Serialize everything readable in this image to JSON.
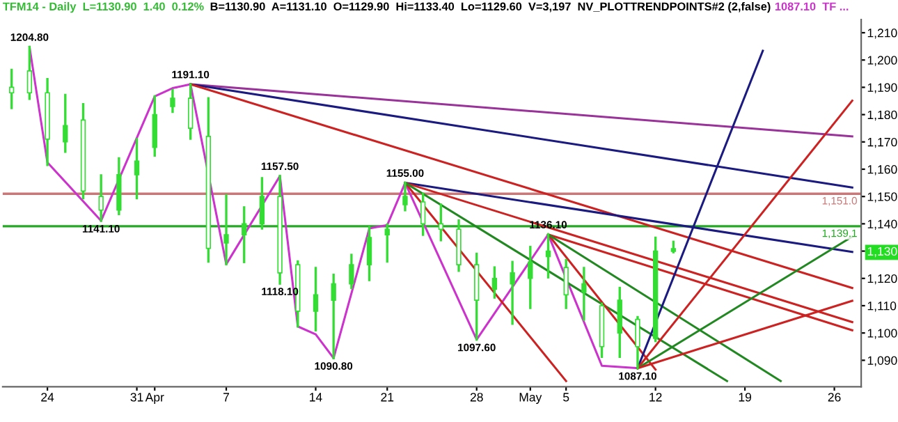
{
  "chart_data": {
    "type": "candlestick",
    "title": "TFM14 - Daily  L=1130.90  1.40  0.12%",
    "subtitle": "B=1130.90  A=1131.10  O=1129.90  Hi=1133.40  Lo=1129.60  V=3,197  NV_PLOTTRENDPOINTS#2 (2,false)",
    "categories": [
      null,
      null,
      "24",
      null,
      null,
      null,
      null,
      "31",
      "Apr",
      null,
      null,
      null,
      "7",
      null,
      null,
      null,
      null,
      "14",
      null,
      null,
      null,
      "21",
      null,
      null,
      null,
      null,
      "28",
      null,
      null,
      "May",
      null,
      "5",
      null,
      null,
      null,
      null,
      "12",
      null,
      null,
      null,
      null,
      "19",
      null,
      null,
      null,
      null,
      "26",
      null
    ],
    "color": "#33dd33",
    "ohlc": [
      [
        1190,
        1196.4,
        1182.4,
        1188
      ],
      [
        1196,
        1204.8,
        1185.8,
        1188
      ],
      [
        1188,
        1193,
        1161.6,
        1171
      ],
      [
        1170,
        1187.2,
        1166.4,
        1176
      ],
      [
        1178,
        1183.8,
        1149.4,
        1152
      ],
      [
        1150,
        1157.7,
        1141.1,
        1145
      ],
      [
        1145,
        1164,
        1143.6,
        1158
      ],
      [
        1158,
        1171,
        1149.4,
        1163
      ],
      [
        1168,
        1186.7,
        1165,
        1180
      ],
      [
        1183,
        1189,
        1181,
        1186
      ],
      [
        1186,
        1191.1,
        1171.2,
        1175
      ],
      [
        1172,
        1186,
        1126.2,
        1131
      ],
      [
        1133,
        1150.4,
        1125.2,
        1136
      ],
      [
        1136,
        1146,
        1126,
        1140
      ],
      [
        1140,
        1156.7,
        1138.3,
        1150
      ],
      [
        1150,
        1157.5,
        1118.1,
        1122
      ],
      [
        1125,
        1126.2,
        1102.4,
        1108
      ],
      [
        1108,
        1123.8,
        1101,
        1114
      ],
      [
        1112,
        1121.3,
        1090.8,
        1118
      ],
      [
        1118,
        1128.6,
        1116.5,
        1125
      ],
      [
        1125,
        1138.8,
        1119.4,
        1135
      ],
      [
        1136,
        1139.7,
        1126.2,
        1138
      ],
      [
        1147,
        1155,
        1145,
        1150
      ],
      [
        1148,
        1151,
        1136,
        1140
      ],
      [
        1140,
        1147,
        1134,
        1138
      ],
      [
        1138,
        1141.2,
        1122.8,
        1125
      ],
      [
        1125,
        1129,
        1097.6,
        1112
      ],
      [
        1116,
        1124,
        1113,
        1120
      ],
      [
        1118,
        1126,
        1103.4,
        1122
      ],
      [
        1120,
        1131.5,
        1109.2,
        1126
      ],
      [
        1128,
        1136.1,
        1120.4,
        1130
      ],
      [
        1124,
        1126.7,
        1109.2,
        1114
      ],
      [
        1115,
        1123.8,
        1104.9,
        1118
      ],
      [
        1110,
        1110.7,
        1091.3,
        1095
      ],
      [
        1100,
        1116.5,
        1091.3,
        1112
      ],
      [
        1105,
        1105.8,
        1087.1,
        1095
      ],
      [
        1098,
        1134.9,
        1097.1,
        1130
      ],
      [
        1129.9,
        1133.4,
        1129.6,
        1130.9
      ],
      null,
      null,
      null,
      null,
      null,
      null,
      null,
      null,
      null,
      null
    ],
    "series": [
      {
        "type": "line",
        "color": "#cc33cc",
        "values": [
          null,
          1204.8,
          1162.5,
          null,
          null,
          1141.1,
          null,
          null,
          1186.7,
          1189.7,
          1191.1,
          null,
          1125.2,
          null,
          null,
          1157.5,
          1102.4,
          1099.5,
          1090.8,
          null,
          1138.3,
          1139.5,
          1155.0,
          null,
          null,
          null,
          1097.6,
          null,
          null,
          null,
          1136.1,
          null,
          null,
          1088.0,
          null,
          1087.1,
          null,
          null,
          null,
          null,
          null,
          null,
          null,
          null,
          null,
          null,
          null,
          null
        ],
        "value_labels": [
          null,
          "1204.80",
          null,
          null,
          null,
          "1141.10",
          null,
          null,
          null,
          null,
          "1191.10",
          null,
          null,
          null,
          null,
          "1157.50",
          null,
          null,
          "1090.80",
          null,
          null,
          null,
          "1155.00",
          null,
          null,
          null,
          "1097.60",
          null,
          null,
          null,
          "1136.10",
          null,
          null,
          null,
          null,
          "1087.10",
          null,
          null,
          null,
          null,
          null,
          null,
          null,
          null,
          null,
          null,
          null,
          null
        ]
      },
      {
        "type": "line",
        "color": "#993399",
        "values": [
          null,
          null,
          null,
          null,
          null,
          null,
          null,
          null,
          null,
          null,
          1191.1,
          null,
          null,
          null,
          null,
          null,
          null,
          null,
          null,
          null,
          null,
          null,
          null,
          null,
          null,
          null,
          null,
          null,
          null,
          null,
          null,
          null,
          null,
          null,
          null,
          null,
          null,
          null,
          null,
          null,
          null,
          null,
          null,
          null,
          null,
          null,
          null,
          1172.0
        ]
      },
      {
        "type": "line",
        "color": "#1a1a80",
        "values": [
          null,
          null,
          null,
          null,
          null,
          null,
          null,
          null,
          null,
          null,
          1191.1,
          null,
          null,
          null,
          null,
          null,
          null,
          null,
          null,
          null,
          null,
          null,
          null,
          null,
          null,
          null,
          null,
          null,
          null,
          null,
          null,
          null,
          null,
          null,
          null,
          null,
          null,
          null,
          null,
          null,
          null,
          null,
          null,
          null,
          null,
          null,
          null,
          1153.3
        ]
      },
      {
        "type": "line",
        "color": "#cc2222",
        "values": [
          null,
          null,
          null,
          null,
          null,
          null,
          null,
          null,
          null,
          null,
          1191.1,
          null,
          null,
          null,
          null,
          null,
          null,
          null,
          null,
          null,
          null,
          null,
          null,
          null,
          null,
          null,
          null,
          null,
          null,
          null,
          null,
          null,
          null,
          null,
          null,
          null,
          null,
          null,
          null,
          null,
          null,
          null,
          null,
          null,
          null,
          null,
          null,
          1116.5
        ]
      },
      {
        "type": "line",
        "color": "#1a1a80",
        "values": [
          null,
          null,
          null,
          null,
          null,
          null,
          null,
          null,
          null,
          null,
          null,
          null,
          null,
          null,
          null,
          null,
          null,
          null,
          null,
          null,
          null,
          null,
          1155.0,
          null,
          null,
          null,
          null,
          null,
          null,
          null,
          null,
          null,
          null,
          null,
          null,
          null,
          null,
          null,
          null,
          null,
          null,
          null,
          null,
          null,
          null,
          null,
          null,
          1129.7
        ]
      },
      {
        "type": "line",
        "color": "#cc2222",
        "values": [
          null,
          null,
          null,
          null,
          null,
          null,
          null,
          null,
          null,
          null,
          null,
          null,
          null,
          null,
          null,
          null,
          null,
          null,
          null,
          null,
          null,
          null,
          1155.0,
          null,
          null,
          null,
          null,
          null,
          null,
          null,
          null,
          null,
          null,
          null,
          null,
          null,
          null,
          null,
          null,
          null,
          null,
          null,
          null,
          null,
          null,
          null,
          null,
          1104.0
        ]
      },
      {
        "type": "line",
        "color": "#cc2222",
        "values": [
          null,
          null,
          null,
          null,
          null,
          null,
          null,
          null,
          null,
          null,
          null,
          null,
          null,
          null,
          null,
          null,
          null,
          null,
          null,
          null,
          null,
          null,
          1155.0,
          null,
          null,
          null,
          null,
          null,
          null,
          null,
          null,
          1082.4,
          null,
          null,
          null,
          null,
          null,
          null,
          null,
          null,
          null,
          null,
          null,
          null,
          null,
          null,
          null,
          null
        ]
      },
      {
        "type": "line",
        "color": "#228822",
        "values": [
          null,
          null,
          null,
          null,
          null,
          null,
          null,
          null,
          null,
          null,
          null,
          null,
          null,
          null,
          null,
          null,
          null,
          null,
          null,
          null,
          null,
          null,
          1155.0,
          null,
          null,
          null,
          null,
          null,
          null,
          null,
          null,
          null,
          null,
          null,
          null,
          null,
          null,
          null,
          null,
          null,
          1082.4,
          null,
          null,
          null,
          null,
          null,
          null,
          null
        ]
      },
      {
        "type": "line",
        "color": "#cc2222",
        "values": [
          null,
          null,
          null,
          null,
          null,
          null,
          null,
          null,
          null,
          null,
          null,
          null,
          null,
          null,
          null,
          null,
          null,
          null,
          null,
          null,
          null,
          null,
          null,
          null,
          null,
          null,
          null,
          null,
          null,
          null,
          1136.1,
          null,
          null,
          null,
          null,
          null,
          null,
          null,
          null,
          null,
          null,
          null,
          null,
          null,
          null,
          null,
          null,
          1101.0
        ]
      },
      {
        "type": "line",
        "color": "#cc2222",
        "values": [
          null,
          null,
          null,
          null,
          null,
          null,
          null,
          null,
          null,
          null,
          null,
          null,
          null,
          null,
          null,
          null,
          null,
          null,
          null,
          null,
          null,
          null,
          null,
          null,
          null,
          null,
          null,
          null,
          null,
          null,
          1136.1,
          null,
          null,
          null,
          null,
          null,
          1086.6,
          null,
          null,
          null,
          null,
          null,
          null,
          null,
          null,
          null,
          null,
          null
        ]
      },
      {
        "type": "line",
        "color": "#228822",
        "values": [
          null,
          null,
          null,
          null,
          null,
          null,
          null,
          null,
          null,
          null,
          null,
          null,
          null,
          null,
          null,
          null,
          null,
          null,
          null,
          null,
          null,
          null,
          null,
          null,
          null,
          null,
          null,
          null,
          null,
          null,
          1136.1,
          null,
          null,
          null,
          null,
          null,
          null,
          null,
          null,
          null,
          null,
          null,
          null,
          1082.4,
          null,
          null,
          null,
          null
        ]
      },
      {
        "type": "line",
        "color": "#1a1a80",
        "values": [
          null,
          null,
          null,
          null,
          null,
          null,
          null,
          null,
          null,
          null,
          null,
          null,
          null,
          null,
          null,
          null,
          null,
          null,
          null,
          null,
          null,
          null,
          null,
          null,
          null,
          null,
          null,
          null,
          null,
          null,
          null,
          null,
          null,
          null,
          null,
          1087.1,
          null,
          null,
          null,
          null,
          null,
          null,
          1203.4,
          null,
          null,
          null,
          null,
          null
        ]
      },
      {
        "type": "line",
        "color": "#cc2222",
        "values": [
          null,
          null,
          null,
          null,
          null,
          null,
          null,
          null,
          null,
          null,
          null,
          null,
          null,
          null,
          null,
          null,
          null,
          null,
          null,
          null,
          null,
          null,
          null,
          null,
          null,
          null,
          null,
          null,
          null,
          null,
          null,
          null,
          null,
          null,
          null,
          1087.1,
          null,
          null,
          null,
          null,
          null,
          null,
          null,
          null,
          null,
          null,
          null,
          1185.1
        ]
      },
      {
        "type": "line",
        "color": "#228822",
        "values": [
          null,
          null,
          null,
          null,
          null,
          null,
          null,
          null,
          null,
          null,
          null,
          null,
          null,
          null,
          null,
          null,
          null,
          null,
          null,
          null,
          null,
          null,
          null,
          null,
          null,
          null,
          null,
          null,
          null,
          null,
          null,
          null,
          null,
          null,
          null,
          1087.1,
          null,
          null,
          null,
          null,
          null,
          null,
          null,
          null,
          null,
          null,
          null,
          1135.3
        ]
      },
      {
        "type": "line",
        "color": "#cc2222",
        "values": [
          null,
          null,
          null,
          null,
          null,
          null,
          null,
          null,
          null,
          null,
          null,
          null,
          null,
          null,
          null,
          null,
          null,
          null,
          null,
          null,
          null,
          null,
          null,
          null,
          null,
          null,
          null,
          null,
          null,
          null,
          null,
          null,
          null,
          null,
          null,
          1087.1,
          null,
          null,
          null,
          null,
          null,
          null,
          null,
          null,
          null,
          null,
          null,
          1111.8
        ]
      }
    ],
    "ref_lines": [
      {
        "axis": "y",
        "value": 1151.0,
        "label": "1,151.0",
        "color": "#c87878"
      },
      {
        "axis": "y",
        "value": 1139.1,
        "label": "1,139.1",
        "color": "#22aa22"
      }
    ],
    "annotations": [
      "1087.10  TF ...",
      {
        "text": "1118.10",
        "y": 1118.1
      }
    ],
    "ylim": [
      1080.3,
      1214.8
    ],
    "yticks": [
      {
        "value": 1090,
        "label": "1,090"
      },
      {
        "value": 1100,
        "label": "1,100"
      },
      {
        "value": 1110,
        "label": "1,110"
      },
      {
        "value": 1120,
        "label": "1,120"
      },
      {
        "value": 1130,
        "label": "1,130"
      },
      {
        "value": 1140,
        "label": "1,140"
      },
      {
        "value": 1150,
        "label": "1,150"
      },
      {
        "value": 1160,
        "label": "1,160"
      },
      {
        "value": 1170,
        "label": "1,170"
      },
      {
        "value": 1180,
        "label": "1,180"
      },
      {
        "value": 1190,
        "label": "1,190"
      },
      {
        "value": 1200,
        "label": "1,200"
      },
      {
        "value": 1210,
        "label": "1,210"
      }
    ],
    "grid": false,
    "legend": false
  }
}
